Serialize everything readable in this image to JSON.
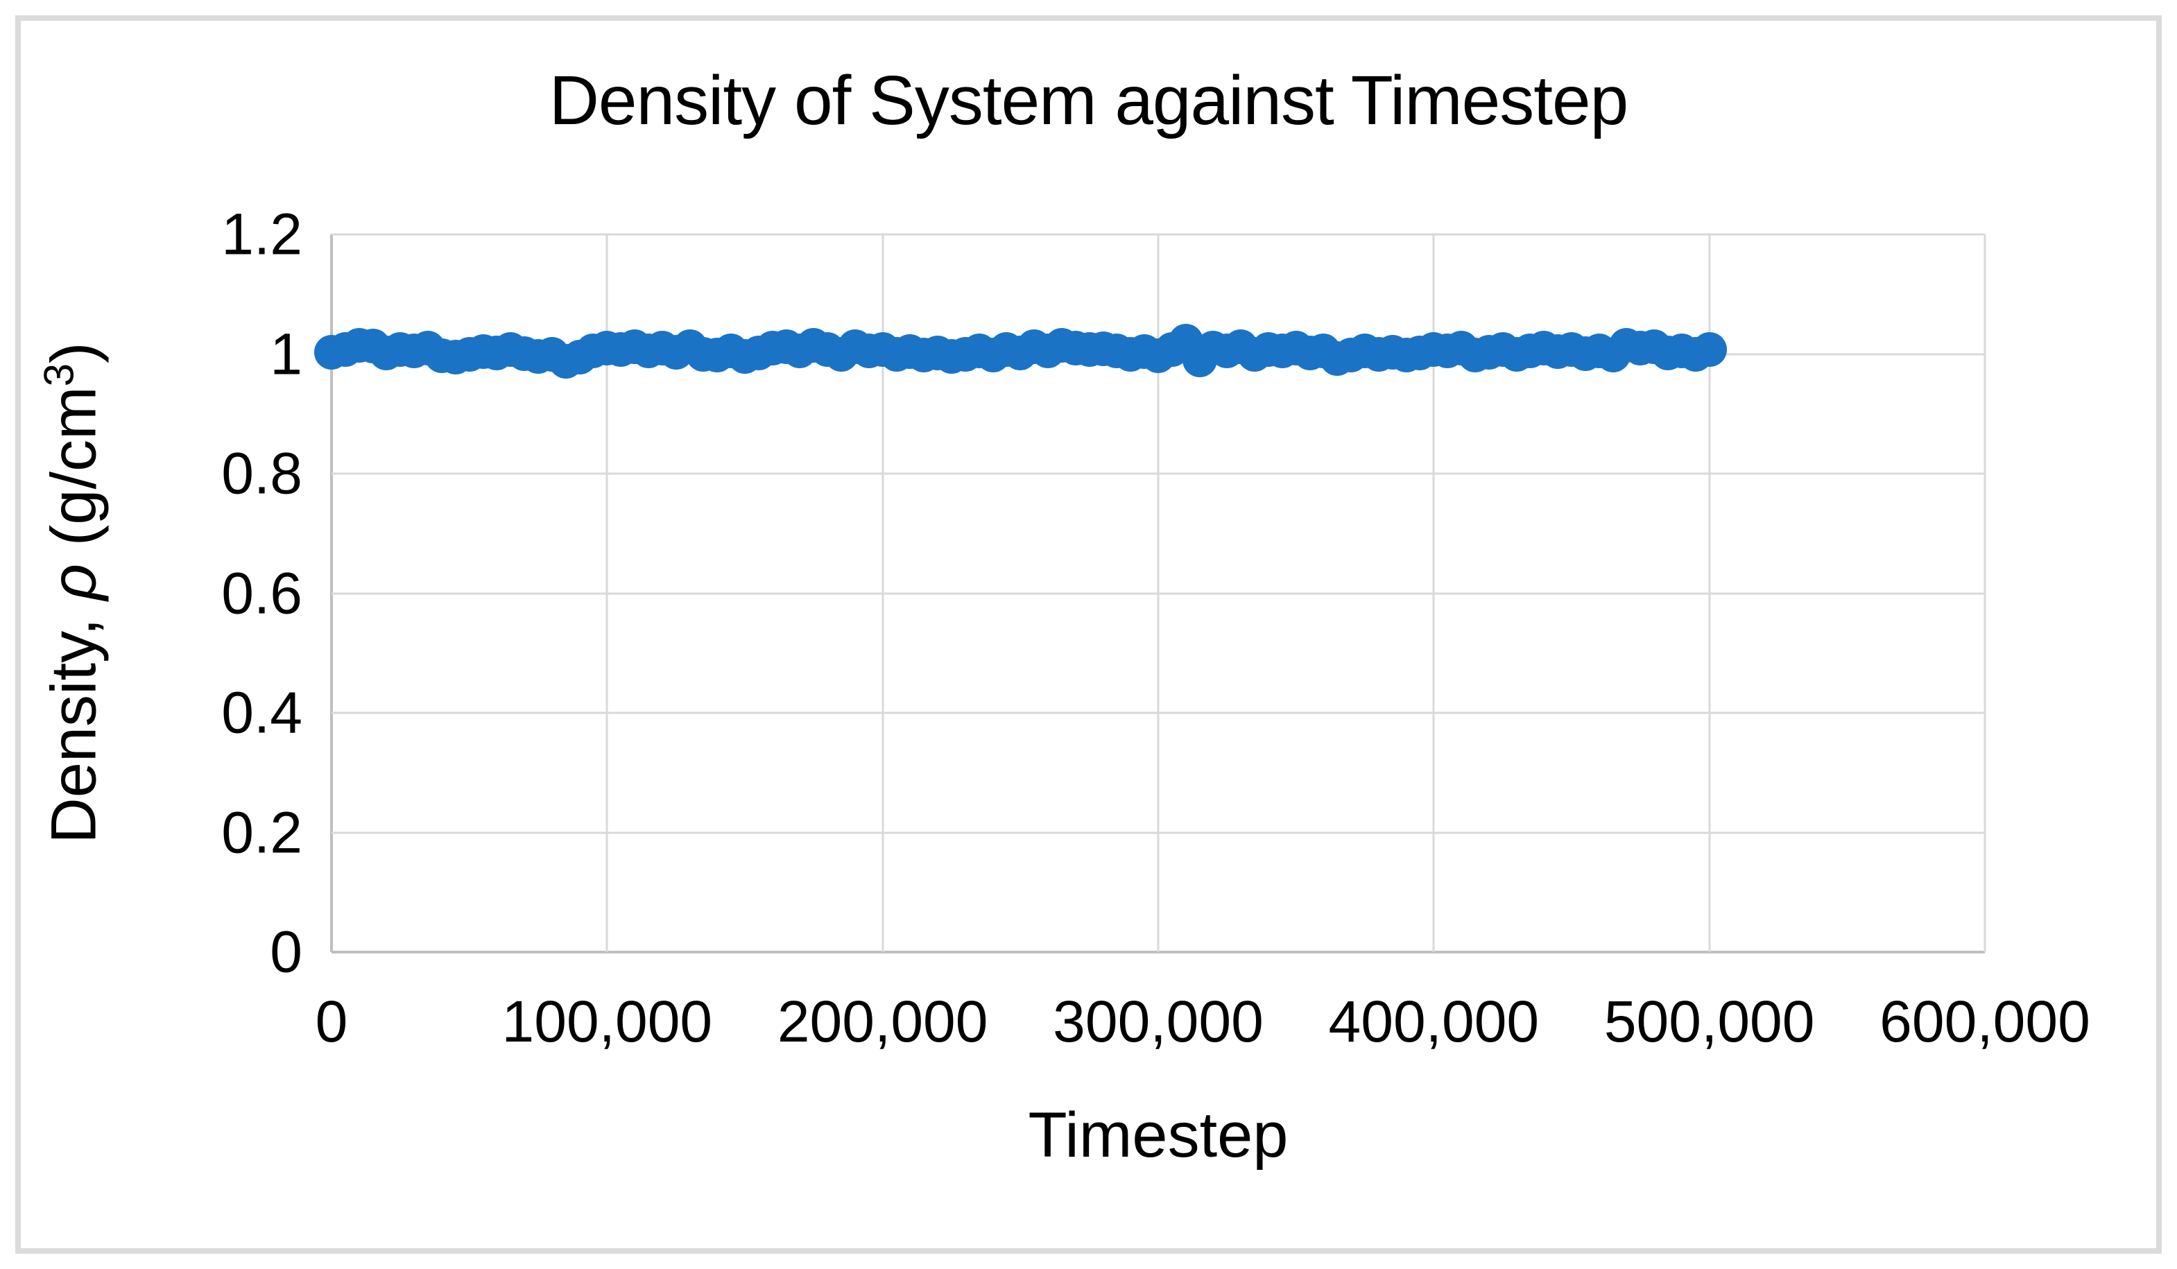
{
  "chart_data": {
    "type": "scatter",
    "title": "Density of System against Timestep",
    "xlabel": "Timestep",
    "ylabel": {
      "prefix": "Density, ",
      "symbol": "ρ",
      "unit_open": " (g/cm",
      "exponent": "3",
      "unit_close": ")"
    },
    "ylabel_text": "Density, ρ (g/cm³)",
    "xlim": [
      0,
      600000
    ],
    "ylim": [
      0,
      1.2
    ],
    "grid": true,
    "legend": "none",
    "x_ticks": [
      {
        "value": 0,
        "label": "0"
      },
      {
        "value": 100000,
        "label": "100,000"
      },
      {
        "value": 200000,
        "label": "200,000"
      },
      {
        "value": 300000,
        "label": "300,000"
      },
      {
        "value": 400000,
        "label": "400,000"
      },
      {
        "value": 500000,
        "label": "500,000"
      },
      {
        "value": 600000,
        "label": "600,000"
      }
    ],
    "y_ticks": [
      {
        "value": 0,
        "label": "0"
      },
      {
        "value": 0.2,
        "label": "0.2"
      },
      {
        "value": 0.4,
        "label": "0.4"
      },
      {
        "value": 0.6,
        "label": "0.6"
      },
      {
        "value": 0.8,
        "label": "0.8"
      },
      {
        "value": 1,
        "label": "1"
      },
      {
        "value": 1.2,
        "label": "1.2"
      }
    ],
    "colors": {
      "marker": "#1B73C6",
      "gridline": "#D9D9D9",
      "axis_line": "#BFBFBF",
      "text": "#000000",
      "frame_border": "#DBDBDB",
      "background": "#FFFFFF"
    },
    "series": [
      {
        "name": "Density",
        "x": [
          0,
          5000,
          10000,
          15000,
          20000,
          25000,
          30000,
          35000,
          40000,
          45000,
          50000,
          55000,
          60000,
          65000,
          70000,
          75000,
          80000,
          85000,
          90000,
          95000,
          100000,
          105000,
          110000,
          115000,
          120000,
          125000,
          130000,
          135000,
          140000,
          145000,
          150000,
          155000,
          160000,
          165000,
          170000,
          175000,
          180000,
          185000,
          190000,
          195000,
          200000,
          205000,
          210000,
          215000,
          220000,
          225000,
          230000,
          235000,
          240000,
          245000,
          250000,
          255000,
          260000,
          265000,
          270000,
          275000,
          280000,
          285000,
          290000,
          295000,
          300000,
          305000,
          310000,
          315000,
          320000,
          325000,
          330000,
          335000,
          340000,
          345000,
          350000,
          355000,
          360000,
          365000,
          370000,
          375000,
          380000,
          385000,
          390000,
          395000,
          400000,
          405000,
          410000,
          415000,
          420000,
          425000,
          430000,
          435000,
          440000,
          445000,
          450000,
          455000,
          460000,
          465000,
          470000,
          475000,
          480000,
          485000,
          490000,
          495000,
          500000
        ],
        "y": [
          1.003,
          1.008,
          1.015,
          1.013,
          1.002,
          1.008,
          1.005,
          1.01,
          0.997,
          0.995,
          1.0,
          1.004,
          1.002,
          1.008,
          1.001,
          0.996,
          0.999,
          0.988,
          0.995,
          1.005,
          1.01,
          1.008,
          1.012,
          1.005,
          1.01,
          1.003,
          1.012,
          1.0,
          0.998,
          1.005,
          0.996,
          1.002,
          1.01,
          1.012,
          1.005,
          1.015,
          1.008,
          1.0,
          1.012,
          1.005,
          1.008,
          1.0,
          1.004,
          0.998,
          1.002,
          0.996,
          1.0,
          1.005,
          0.998,
          1.008,
          1.002,
          1.012,
          1.005,
          1.015,
          1.01,
          1.008,
          1.009,
          1.005,
          1.0,
          1.004,
          0.997,
          1.008,
          1.022,
          0.99,
          1.01,
          1.005,
          1.012,
          1.0,
          1.008,
          1.005,
          1.01,
          1.002,
          1.005,
          0.992,
          0.998,
          1.005,
          1.0,
          1.003,
          0.998,
          1.002,
          1.008,
          1.005,
          1.01,
          0.998,
          1.003,
          1.008,
          1.0,
          1.005,
          1.01,
          1.004,
          1.008,
          1.001,
          1.005,
          0.998,
          1.015,
          1.01,
          1.012,
          1.002,
          1.005,
          1.0,
          1.008
        ]
      }
    ]
  }
}
